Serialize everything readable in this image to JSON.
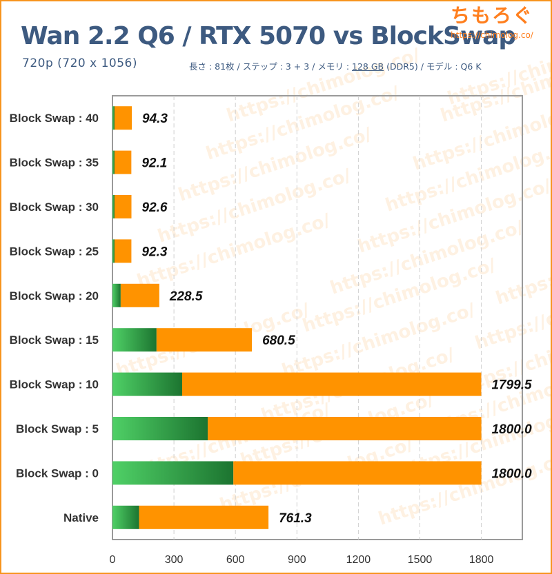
{
  "title": "Wan 2.2 Q6 / RTX 5070 vs BlockSwap",
  "subtitle": "720p (720 x 1056)",
  "conditions": {
    "before": "長さ : 81枚 / ステップ : 3 + 3 / メモリ : ",
    "memory": "128 GB",
    "after": " (DDR5) / モデル : Q6 K"
  },
  "logo": {
    "mark": "ちもろぐ",
    "url": "https://chimolog.co/"
  },
  "watermark": "https://chimolog.co/",
  "colors": {
    "green_light": "#42c85a",
    "green_dark": "#1e7a33",
    "orange": "#ff9300",
    "frame": "#f7941d",
    "title": "#3d5a80"
  },
  "chart_data": {
    "type": "bar",
    "orientation": "horizontal",
    "stacked": true,
    "categories": [
      "Block Swap : 40",
      "Block Swap : 35",
      "Block Swap : 30",
      "Block Swap : 25",
      "Block Swap : 20",
      "Block Swap : 15",
      "Block Swap : 10",
      "Block Swap : 5",
      "Block Swap : 0",
      "Native"
    ],
    "series": [
      {
        "color": "green",
        "values": [
          10,
          10,
          10,
          10,
          40,
          215,
          340,
          465,
          590,
          130
        ]
      },
      {
        "color": "orange",
        "values": [
          84.3,
          82.1,
          82.6,
          82.3,
          188.5,
          465.5,
          1459.5,
          1335.0,
          1210.0,
          631.3
        ]
      }
    ],
    "totals": [
      "94.3",
      "92.1",
      "92.6",
      "92.3",
      "228.5",
      "680.5",
      "1799.5",
      "1800.0",
      "1800.0",
      "761.3"
    ],
    "total_values": [
      94.3,
      92.1,
      92.6,
      92.3,
      228.5,
      680.5,
      1799.5,
      1800.0,
      1800.0,
      761.3
    ],
    "xlim": [
      0,
      2000
    ],
    "xticks": [
      "0",
      "300",
      "600",
      "900",
      "1200",
      "1500",
      "1800"
    ],
    "xtick_values": [
      0,
      300,
      600,
      900,
      1200,
      1500,
      1800
    ],
    "grid": true,
    "title": "Wan 2.2 Q6 / RTX 5070 vs BlockSwap",
    "xlabel": "",
    "ylabel": ""
  }
}
